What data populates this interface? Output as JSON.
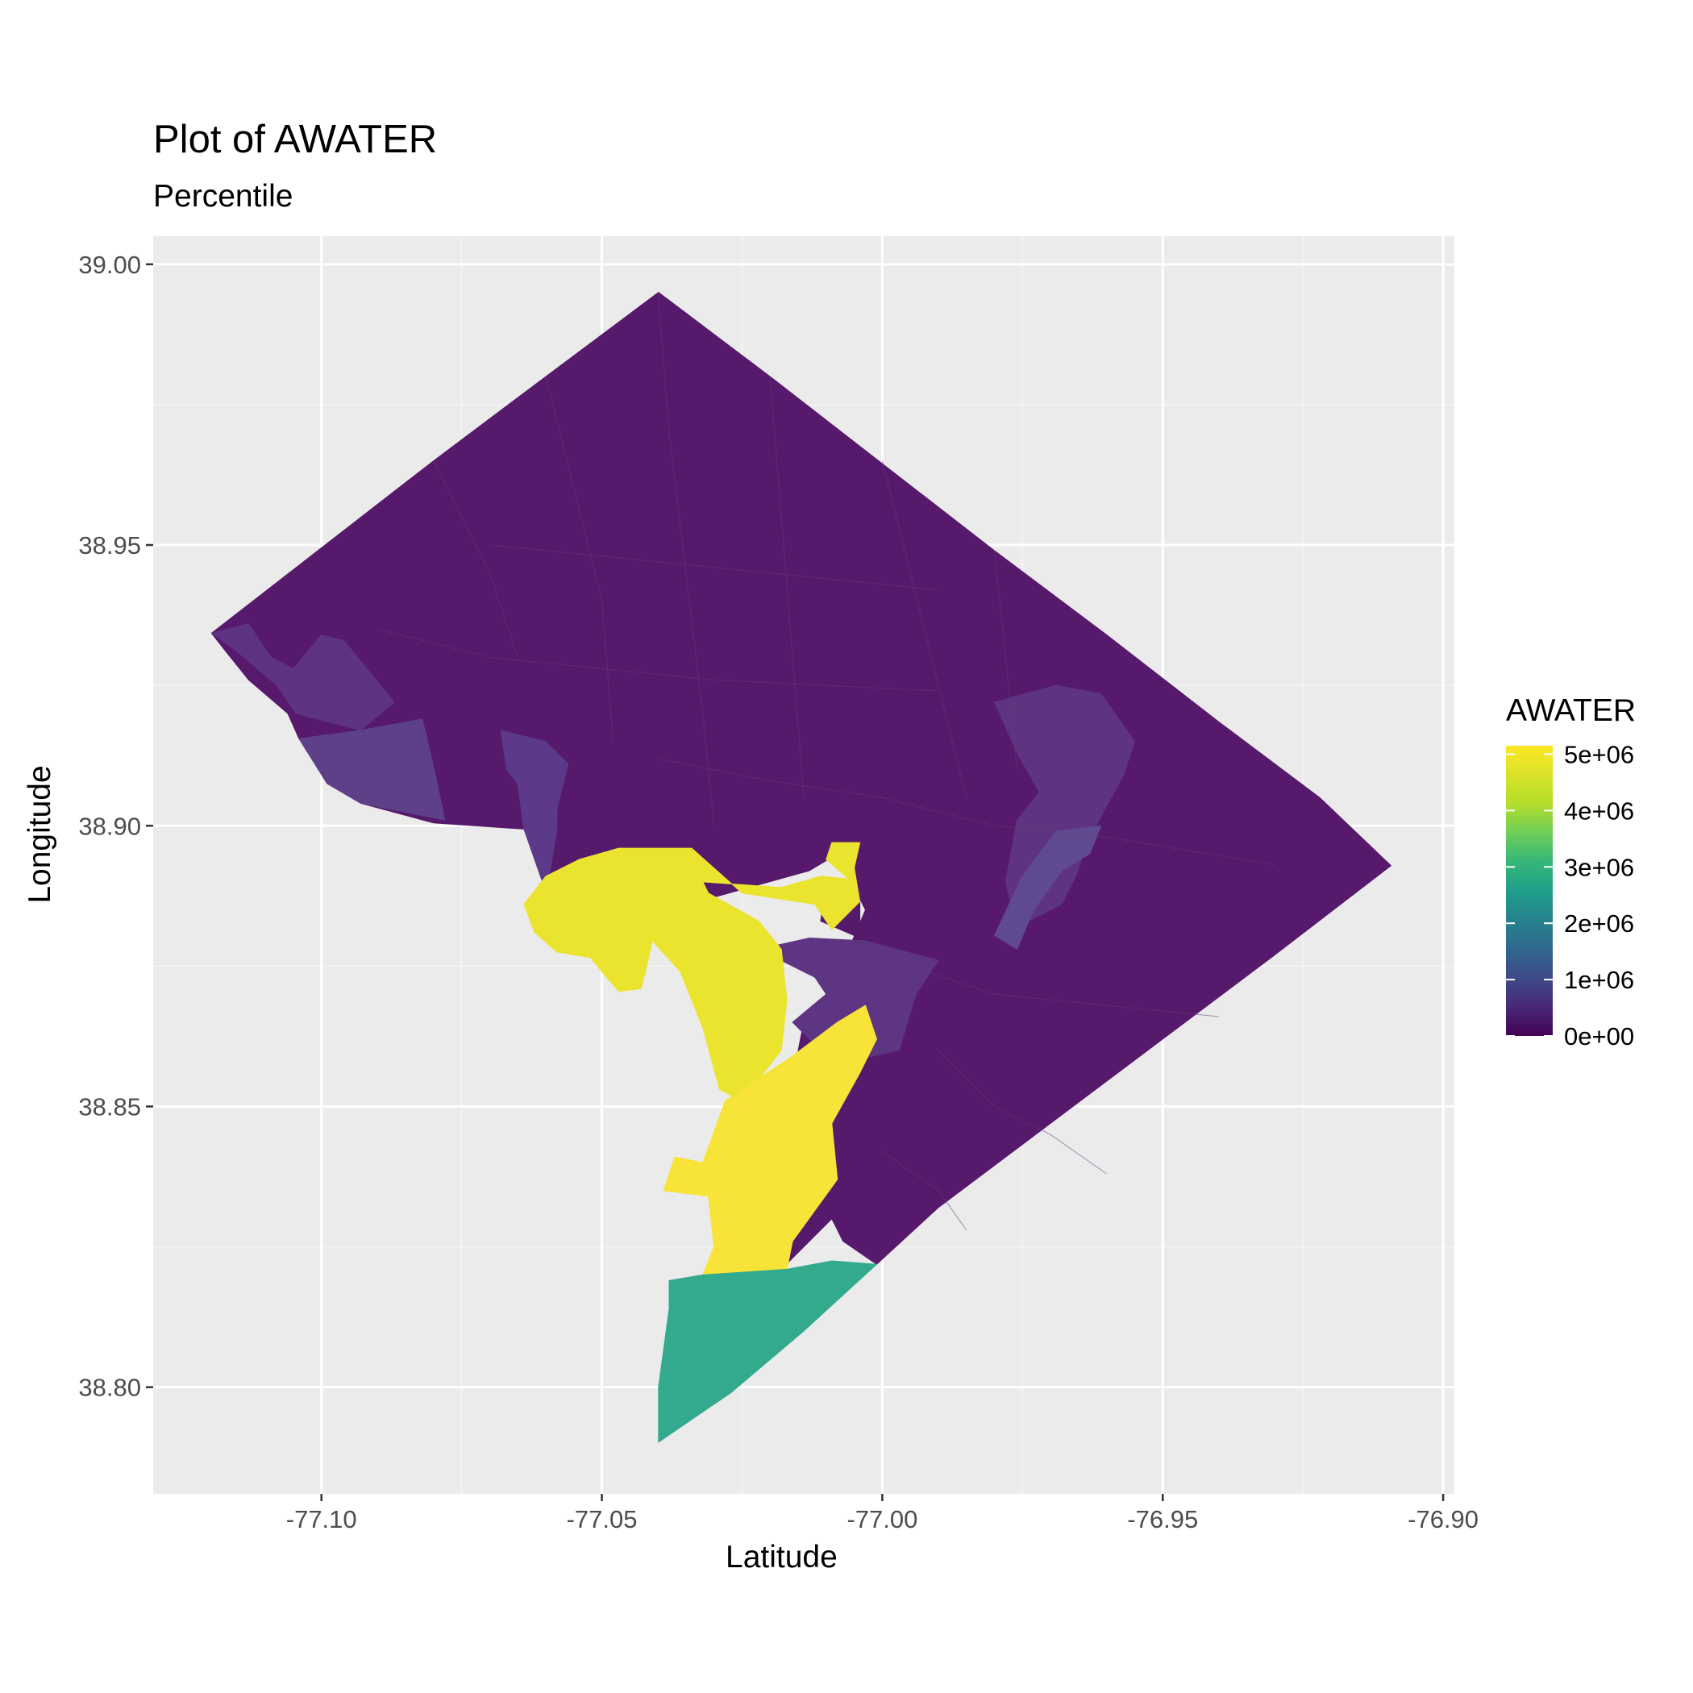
{
  "chart_data": {
    "type": "choropleth",
    "title": "Plot of AWATER",
    "subtitle": "Percentile",
    "xlabel": "Latitude",
    "ylabel": "Longitude",
    "xlim": [
      -77.13,
      -76.898
    ],
    "ylim": [
      38.781,
      39.005
    ],
    "x_ticks": [
      {
        "value": -77.1,
        "label": "-77.10"
      },
      {
        "value": -77.05,
        "label": "-77.05"
      },
      {
        "value": -77.0,
        "label": "-77.00"
      },
      {
        "value": -76.95,
        "label": "-76.95"
      },
      {
        "value": -76.9,
        "label": "-76.90"
      }
    ],
    "y_ticks": [
      {
        "value": 38.8,
        "label": "38.80"
      },
      {
        "value": 38.85,
        "label": "38.85"
      },
      {
        "value": 38.9,
        "label": "38.90"
      },
      {
        "value": 38.95,
        "label": "38.95"
      },
      {
        "value": 39.0,
        "label": "39.00"
      }
    ],
    "grid": true,
    "legend": {
      "title": "AWATER",
      "position": "right",
      "range": [
        0,
        5150000
      ],
      "breaks": [
        {
          "value": 5000000,
          "label": "5e+06"
        },
        {
          "value": 4000000,
          "label": "4e+06"
        },
        {
          "value": 3000000,
          "label": "3e+06"
        },
        {
          "value": 2000000,
          "label": "2e+06"
        },
        {
          "value": 1000000,
          "label": "1e+06"
        },
        {
          "value": 0,
          "label": "0e+00"
        }
      ],
      "palette": [
        "#440154",
        "#3b528b",
        "#21908c",
        "#5dc863",
        "#fde725"
      ]
    },
    "regions": [
      {
        "value": 0,
        "color": "#56196b",
        "coords": [
          [
            -77.1196,
            38.9343
          ],
          [
            -77.1,
            38.9495
          ],
          [
            -77.08,
            38.965
          ],
          [
            -77.06,
            38.98
          ],
          [
            -77.0399,
            38.995
          ],
          [
            -77.02,
            38.98
          ],
          [
            -77.0,
            38.9645
          ],
          [
            -76.98,
            38.949
          ],
          [
            -76.96,
            38.934
          ],
          [
            -76.94,
            38.9185
          ],
          [
            -76.922,
            38.905
          ],
          [
            -76.9093,
            38.8929
          ],
          [
            -76.93,
            38.877
          ],
          [
            -76.95,
            38.862
          ],
          [
            -76.97,
            38.847
          ],
          [
            -76.99,
            38.832
          ],
          [
            -77.001,
            38.8219
          ],
          [
            -77.007,
            38.826
          ],
          [
            -77.009,
            38.83
          ],
          [
            -77.017,
            38.822
          ],
          [
            -77.021,
            38.821
          ],
          [
            -77.021,
            38.83
          ],
          [
            -77.017,
            38.837
          ],
          [
            -77.018,
            38.847
          ],
          [
            -77.0162,
            38.854
          ],
          [
            -77.014,
            38.865
          ],
          [
            -77.0025,
            38.869
          ],
          [
            -77.006,
            38.878
          ],
          [
            -77.003,
            38.885
          ],
          [
            -77.008,
            38.895
          ],
          [
            -77.013,
            38.892
          ],
          [
            -77.031,
            38.887
          ],
          [
            -77.037,
            38.892
          ],
          [
            -77.0457,
            38.896
          ],
          [
            -77.055,
            38.8925
          ],
          [
            -77.0599,
            38.8894
          ],
          [
            -77.0639,
            38.8994
          ],
          [
            -77.08,
            38.9005
          ],
          [
            -77.093,
            38.904
          ],
          [
            -77.104,
            38.9155
          ],
          [
            -77.106,
            38.92
          ],
          [
            -77.113,
            38.926
          ],
          [
            -77.117,
            38.931
          ]
        ]
      },
      {
        "value": 600000,
        "color": "#5e3382",
        "coords": [
          [
            -77.1196,
            38.9343
          ],
          [
            -77.115,
            38.931
          ],
          [
            -77.108,
            38.925
          ],
          [
            -77.1045,
            38.92
          ],
          [
            -77.093,
            38.917
          ],
          [
            -77.087,
            38.922
          ],
          [
            -77.096,
            38.933
          ],
          [
            -77.1,
            38.934
          ],
          [
            -77.105,
            38.928
          ],
          [
            -77.109,
            38.93
          ],
          [
            -77.113,
            38.936
          ]
        ]
      },
      {
        "value": 900000,
        "color": "#5e4088",
        "coords": [
          [
            -77.104,
            38.9155
          ],
          [
            -77.093,
            38.917
          ],
          [
            -77.082,
            38.919
          ],
          [
            -77.08,
            38.9105
          ],
          [
            -77.078,
            38.901
          ],
          [
            -77.093,
            38.904
          ],
          [
            -77.099,
            38.9075
          ]
        ]
      },
      {
        "value": 800000,
        "color": "#5d3989",
        "coords": [
          [
            -77.068,
            38.917
          ],
          [
            -77.06,
            38.915
          ],
          [
            -77.056,
            38.911
          ],
          [
            -77.058,
            38.903
          ],
          [
            -77.058,
            38.8994
          ],
          [
            -77.0599,
            38.888
          ],
          [
            -77.0639,
            38.8994
          ],
          [
            -77.065,
            38.9075
          ],
          [
            -77.067,
            38.91
          ]
        ]
      },
      {
        "value": 700000,
        "color": "#5e3480",
        "coords": [
          [
            -76.98,
            38.922
          ],
          [
            -76.969,
            38.925
          ],
          [
            -76.961,
            38.9235
          ],
          [
            -76.955,
            38.915
          ],
          [
            -76.957,
            38.909
          ],
          [
            -76.963,
            38.898
          ],
          [
            -76.9655,
            38.891
          ],
          [
            -76.968,
            38.886
          ],
          [
            -76.976,
            38.882
          ],
          [
            -76.978,
            38.89
          ],
          [
            -76.976,
            38.901
          ],
          [
            -76.972,
            38.906
          ],
          [
            -76.976,
            38.913
          ]
        ]
      },
      {
        "value": 1100000,
        "color": "#604a8f",
        "coords": [
          [
            -76.961,
            38.9
          ],
          [
            -76.969,
            38.899
          ],
          [
            -76.975,
            38.891
          ],
          [
            -76.98,
            38.8805
          ],
          [
            -76.976,
            38.878
          ],
          [
            -76.973,
            38.885
          ],
          [
            -76.968,
            38.892
          ],
          [
            -76.963,
            38.895
          ]
        ]
      },
      {
        "value": 700000,
        "color": "#5e3582",
        "coords": [
          [
            -77.022,
            38.878
          ],
          [
            -77.012,
            38.873
          ],
          [
            -77.01,
            38.87
          ],
          [
            -77.016,
            38.865
          ],
          [
            -77.011,
            38.86
          ],
          [
            -77.006,
            38.858
          ],
          [
            -76.997,
            38.86
          ],
          [
            -76.994,
            38.87
          ],
          [
            -76.99,
            38.876
          ],
          [
            -77.003,
            38.8795
          ],
          [
            -77.013,
            38.88
          ]
        ]
      },
      {
        "value": 0,
        "color": "#56196b",
        "coords": [
          [
            -77.01,
            38.8895
          ],
          [
            -77.004,
            38.888
          ],
          [
            -77.004,
            38.88
          ],
          [
            -77.011,
            38.883
          ]
        ]
      },
      {
        "value": 4900000,
        "color": "#ebe42e",
        "coords": [
          [
            -77.0639,
            38.886
          ],
          [
            -77.062,
            38.881
          ],
          [
            -77.058,
            38.8775
          ],
          [
            -77.052,
            38.8765
          ],
          [
            -77.05,
            38.874
          ],
          [
            -77.047,
            38.8705
          ],
          [
            -77.043,
            38.871
          ],
          [
            -77.042,
            38.875
          ],
          [
            -77.041,
            38.8795
          ],
          [
            -77.036,
            38.874
          ],
          [
            -77.032,
            38.864
          ],
          [
            -77.029,
            38.853
          ],
          [
            -77.025,
            38.851
          ],
          [
            -77.018,
            38.86
          ],
          [
            -77.017,
            38.869
          ],
          [
            -77.018,
            38.878
          ],
          [
            -77.022,
            38.883
          ],
          [
            -77.031,
            38.888
          ],
          [
            -77.032,
            38.89
          ],
          [
            -77.018,
            38.889
          ],
          [
            -77.011,
            38.891
          ],
          [
            -77.006,
            38.8905
          ],
          [
            -77.01,
            38.894
          ],
          [
            -77.009,
            38.897
          ],
          [
            -77.004,
            38.897
          ],
          [
            -77.005,
            38.8925
          ],
          [
            -77.004,
            38.8865
          ],
          [
            -77.009,
            38.8815
          ],
          [
            -77.012,
            38.886
          ],
          [
            -77.025,
            38.888
          ],
          [
            -77.034,
            38.896
          ],
          [
            -77.037,
            38.896
          ],
          [
            -77.047,
            38.896
          ],
          [
            -77.054,
            38.894
          ],
          [
            -77.06,
            38.891
          ]
        ]
      },
      {
        "value": 5150000,
        "color": "#f8e338",
        "coords": [
          [
            -77.008,
            38.865
          ],
          [
            -77.016,
            38.859
          ],
          [
            -77.028,
            38.851
          ],
          [
            -77.032,
            38.84
          ],
          [
            -77.037,
            38.841
          ],
          [
            -77.039,
            38.835
          ],
          [
            -77.031,
            38.834
          ],
          [
            -77.03,
            38.825
          ],
          [
            -77.032,
            38.82
          ],
          [
            -77.017,
            38.821
          ],
          [
            -77.016,
            38.826
          ],
          [
            -77.008,
            38.837
          ],
          [
            -77.009,
            38.847
          ],
          [
            -77.004,
            38.856
          ],
          [
            -77.001,
            38.862
          ],
          [
            -77.003,
            38.868
          ]
        ]
      },
      {
        "value": 2900000,
        "color": "#33aa8e",
        "coords": [
          [
            -77.032,
            38.82
          ],
          [
            -77.017,
            38.821
          ],
          [
            -77.009,
            38.8225
          ],
          [
            -77.001,
            38.8219
          ],
          [
            -77.014,
            38.81
          ],
          [
            -77.027,
            38.799
          ],
          [
            -77.0399,
            38.7902
          ],
          [
            -77.0399,
            38.8
          ],
          [
            -77.038,
            38.814
          ],
          [
            -77.038,
            38.819
          ]
        ]
      }
    ]
  }
}
